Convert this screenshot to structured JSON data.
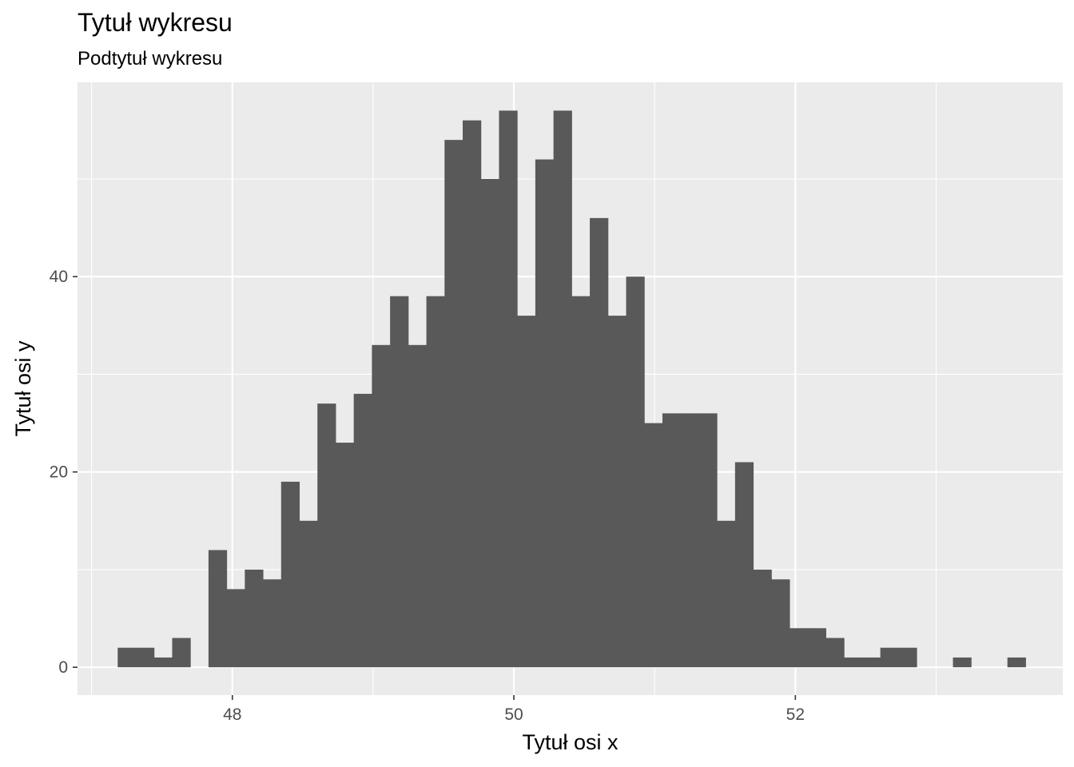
{
  "chart_data": {
    "type": "bar",
    "title": "Tytuł wykresu",
    "subtitle": "Podtytuł wykresu",
    "xlabel": "Tytuł osi x",
    "ylabel": "Tytuł osi y",
    "xlim": [
      46.9,
      53.9
    ],
    "ylim": [
      -2.85,
      59.9
    ],
    "xticks": [
      48,
      50,
      52
    ],
    "yticks": [
      0,
      20,
      40
    ],
    "grid": true,
    "bin_width": 0.129,
    "bins_x": [
      47.25,
      47.379,
      47.508,
      47.637,
      47.766,
      47.895,
      48.024,
      48.153,
      48.282,
      48.411,
      48.54,
      48.669,
      48.798,
      48.927,
      49.056,
      49.185,
      49.314,
      49.443,
      49.572,
      49.701,
      49.83,
      49.959,
      50.088,
      50.217,
      50.346,
      50.475,
      50.604,
      50.733,
      50.862,
      50.991,
      51.12,
      51.249,
      51.378,
      51.507,
      51.636,
      51.765,
      51.894,
      52.023,
      52.152,
      52.281,
      52.41,
      52.539,
      52.668,
      52.797,
      52.926,
      53.055,
      53.184,
      53.313,
      53.442,
      53.571
    ],
    "values": [
      2,
      2,
      1,
      3,
      0,
      12,
      8,
      10,
      9,
      19,
      15,
      27,
      23,
      28,
      33,
      38,
      33,
      38,
      54,
      56,
      50,
      57,
      36,
      52,
      57,
      38,
      46,
      36,
      40,
      25,
      26,
      26,
      26,
      15,
      21,
      10,
      9,
      4,
      4,
      3,
      1,
      1,
      2,
      2,
      0,
      0,
      1,
      0,
      0,
      1
    ],
    "bar_color": "#595959",
    "panel_color": "#ebebeb",
    "grid_color": "#ffffff"
  }
}
